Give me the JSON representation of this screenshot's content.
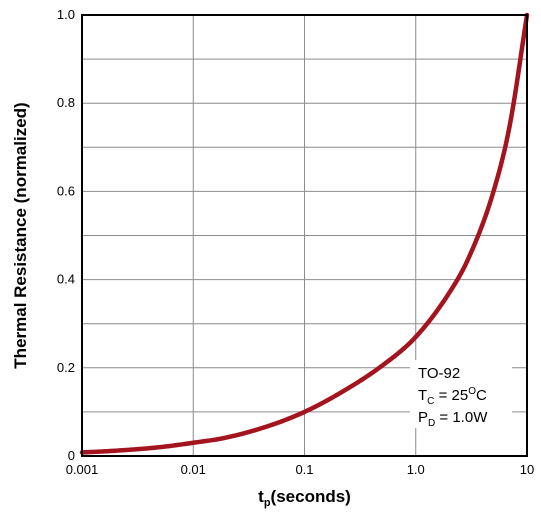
{
  "chart_data": {
    "type": "line",
    "xlabel": {
      "main": "t",
      "sub": "p",
      "rest": "(seconds)"
    },
    "ylabel": "Thermal Resistance (normalized)",
    "x_scale": "log",
    "xlim": [
      0.001,
      10
    ],
    "ylim": [
      0,
      1.0
    ],
    "grid": true,
    "legend": "none",
    "x_ticks": [
      {
        "value": 0.001,
        "label": "0.001"
      },
      {
        "value": 0.01,
        "label": "0.01"
      },
      {
        "value": 0.1,
        "label": "0.1"
      },
      {
        "value": 1,
        "label": "1.0"
      },
      {
        "value": 10,
        "label": "10"
      }
    ],
    "y_ticks": [
      {
        "value": 0,
        "label": "0"
      },
      {
        "value": 0.2,
        "label": "0.2"
      },
      {
        "value": 0.4,
        "label": "0.4"
      },
      {
        "value": 0.6,
        "label": "0.6"
      },
      {
        "value": 0.8,
        "label": "0.8"
      },
      {
        "value": 1.0,
        "label": "1.0"
      }
    ],
    "series": [
      {
        "color": "#a3141e",
        "x": [
          0.001,
          0.002,
          0.005,
          0.01,
          0.02,
          0.05,
          0.1,
          0.2,
          0.5,
          1,
          2,
          3,
          5,
          7,
          10
        ],
        "y": [
          0.008,
          0.012,
          0.02,
          0.03,
          0.042,
          0.07,
          0.1,
          0.14,
          0.205,
          0.27,
          0.37,
          0.45,
          0.6,
          0.75,
          1.0
        ]
      }
    ],
    "annotation": {
      "package": "TO-92",
      "tc": {
        "main": "T",
        "sub": "C",
        "rest": " = 25",
        "sup": "O",
        "unit": "C"
      },
      "pd": {
        "main": "P",
        "sub": "D",
        "rest": " = 1.0W"
      }
    }
  }
}
